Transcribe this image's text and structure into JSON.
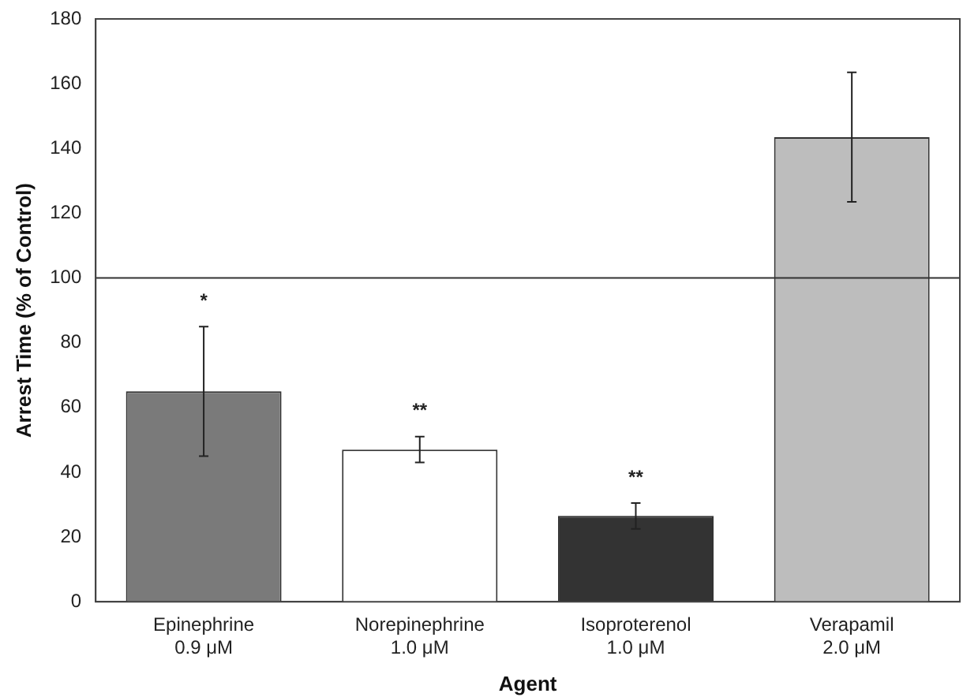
{
  "chart_data": {
    "type": "bar",
    "xlabel": "Agent",
    "ylabel": "Arrest Time (% of Control)",
    "categories": [
      "Epinephrine\n0.9 μM",
      "Norepinephrine\n1.0 μM",
      "Isoproterenol\n1.0 μM",
      "Verapamil\n2.0 μM"
    ],
    "values": [
      65,
      47,
      26.5,
      143.5
    ],
    "colors": [
      "#7a7a7a",
      "#ffffff",
      "#333333",
      "#bdbdbd"
    ],
    "errors": [
      20,
      4,
      4,
      20
    ],
    "ylim": [
      0,
      180
    ],
    "yticks": [
      0,
      20,
      40,
      60,
      80,
      100,
      120,
      140,
      160,
      180
    ],
    "grid": false,
    "legend": false,
    "ref_lines": [
      {
        "axis": "y",
        "value": 100,
        "color": "#333333"
      }
    ],
    "annotations": [
      {
        "text": "*",
        "x": "Epinephrine\n0.9 μM",
        "y": 85
      },
      {
        "text": "**",
        "x": "Norepinephrine\n1.0 μM",
        "y": 51
      },
      {
        "text": "**",
        "x": "Isoproterenol\n1.0 μM",
        "y": 30.5
      }
    ]
  }
}
